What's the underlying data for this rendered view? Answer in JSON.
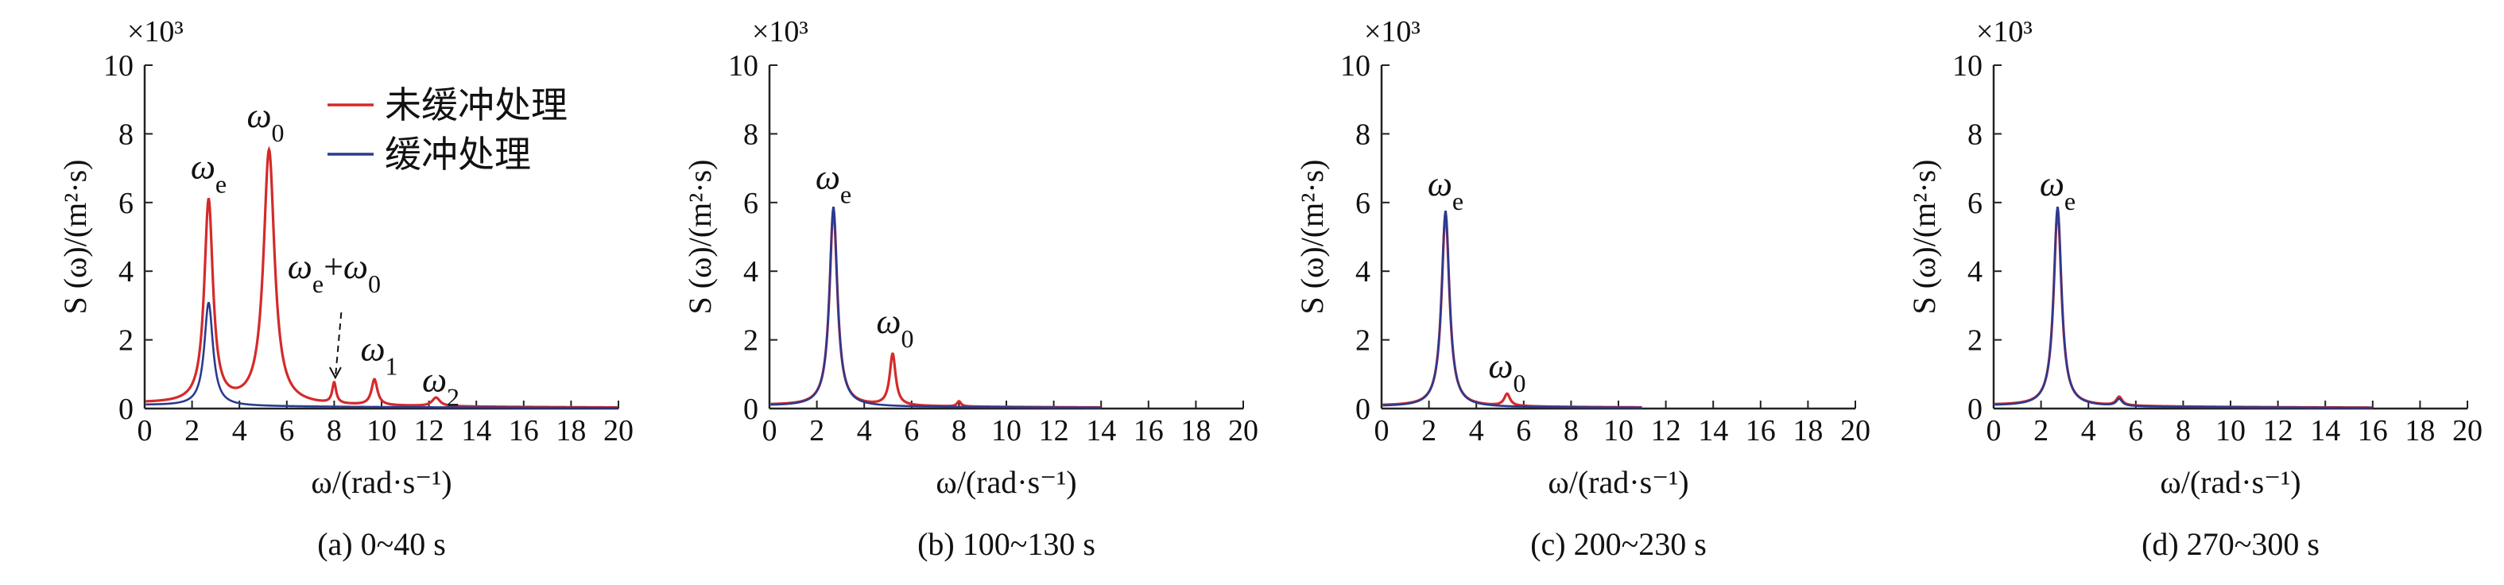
{
  "chart_data": [
    {
      "type": "line",
      "caption": "(a) 0~40 s",
      "xlabel": "ω/(rad·s⁻¹)",
      "ylabel": "S (ω)/(m²·s)",
      "y_multiplier": "×10³",
      "xlim": [
        0,
        20
      ],
      "ylim": [
        0,
        10
      ],
      "x_ticks": [
        0,
        2,
        4,
        6,
        8,
        10,
        12,
        14,
        16,
        18,
        20
      ],
      "y_ticks": [
        0,
        2,
        4,
        6,
        8,
        10
      ],
      "legend": [
        "未缓冲处理",
        "缓冲处理"
      ],
      "legend_position": "top-right",
      "annotations": [
        {
          "text": "ωe",
          "x": 2.7,
          "y": 6.7
        },
        {
          "text": "ω0",
          "x": 5.1,
          "y": 8.2
        },
        {
          "text": "ωe+ω0",
          "x": 8.0,
          "y": 3.8
        },
        {
          "text": "ω1",
          "x": 9.9,
          "y": 1.4
        },
        {
          "text": "ω2",
          "x": 12.5,
          "y": 0.5
        }
      ],
      "series": [
        {
          "name": "未缓冲处理",
          "color": "#d42a2a",
          "peaks": [
            [
              2.7,
              5.9,
              0.22
            ],
            [
              5.25,
              7.4,
              0.28
            ],
            [
              8.0,
              0.6,
              0.1
            ],
            [
              9.7,
              0.75,
              0.15
            ],
            [
              12.3,
              0.25,
              0.2
            ]
          ],
          "base": 0.15
        },
        {
          "name": "缓冲处理",
          "color": "#2b3a8f",
          "peaks": [
            [
              2.7,
              3.0,
              0.22
            ]
          ],
          "base": 0.1
        }
      ]
    },
    {
      "type": "line",
      "caption": "(b) 100~130 s",
      "xlabel": "ω/(rad·s⁻¹)",
      "ylabel": "S (ω)/(m²·s)",
      "y_multiplier": "×10³",
      "xlim": [
        0,
        20
      ],
      "ylim": [
        0,
        10
      ],
      "x_ticks": [
        0,
        2,
        4,
        6,
        8,
        10,
        12,
        14,
        16,
        18,
        20
      ],
      "y_ticks": [
        0,
        2,
        4,
        6,
        8,
        10
      ],
      "annotations": [
        {
          "text": "ωe",
          "x": 2.7,
          "y": 6.4
        },
        {
          "text": "ω0",
          "x": 5.3,
          "y": 2.2
        }
      ],
      "series": [
        {
          "name": "",
          "color": "#d42a2a",
          "peaks": [
            [
              2.7,
              5.7,
              0.2
            ],
            [
              5.2,
              1.5,
              0.15
            ],
            [
              8.0,
              0.15,
              0.1
            ]
          ],
          "base": 0.1,
          "xmax": 14
        },
        {
          "name": "",
          "color": "#2b3a8f",
          "peaks": [
            [
              2.7,
              5.8,
              0.2
            ]
          ],
          "base": 0.08,
          "xmax": 14
        }
      ]
    },
    {
      "type": "line",
      "caption": "(c) 200~230 s",
      "xlabel": "ω/(rad·s⁻¹)",
      "ylabel": "S (ω)/(m²·s)",
      "y_multiplier": "×10³",
      "xlim": [
        0,
        20
      ],
      "ylim": [
        0,
        10
      ],
      "x_ticks": [
        0,
        2,
        4,
        6,
        8,
        10,
        12,
        14,
        16,
        18,
        20
      ],
      "y_ticks": [
        0,
        2,
        4,
        6,
        8,
        10
      ],
      "annotations": [
        {
          "text": "ωe",
          "x": 2.7,
          "y": 6.2
        },
        {
          "text": "ω0",
          "x": 5.3,
          "y": 0.9
        }
      ],
      "series": [
        {
          "name": "",
          "color": "#d42a2a",
          "peaks": [
            [
              2.7,
              5.6,
              0.2
            ],
            [
              5.3,
              0.35,
              0.15
            ]
          ],
          "base": 0.08,
          "xmax": 11
        },
        {
          "name": "",
          "color": "#2b3a8f",
          "peaks": [
            [
              2.7,
              5.7,
              0.2
            ]
          ],
          "base": 0.06,
          "xmax": 11
        }
      ]
    },
    {
      "type": "line",
      "caption": "(d) 270~300 s",
      "xlabel": "ω/(rad·s⁻¹)",
      "ylabel": "S (ω)/(m²·s)",
      "y_multiplier": "×10³",
      "xlim": [
        0,
        20
      ],
      "ylim": [
        0,
        10
      ],
      "x_ticks": [
        0,
        2,
        4,
        6,
        8,
        10,
        12,
        14,
        16,
        18,
        20
      ],
      "y_ticks": [
        0,
        2,
        4,
        6,
        8,
        10
      ],
      "annotations": [
        {
          "text": "ωe",
          "x": 2.7,
          "y": 6.2
        }
      ],
      "series": [
        {
          "name": "",
          "color": "#d42a2a",
          "peaks": [
            [
              2.7,
              5.7,
              0.2
            ],
            [
              5.3,
              0.25,
              0.15
            ]
          ],
          "base": 0.1,
          "xmax": 16
        },
        {
          "name": "",
          "color": "#2b3a8f",
          "peaks": [
            [
              2.7,
              5.8,
              0.2
            ],
            [
              5.3,
              0.2,
              0.15
            ]
          ],
          "base": 0.08,
          "xmax": 16
        }
      ]
    }
  ]
}
